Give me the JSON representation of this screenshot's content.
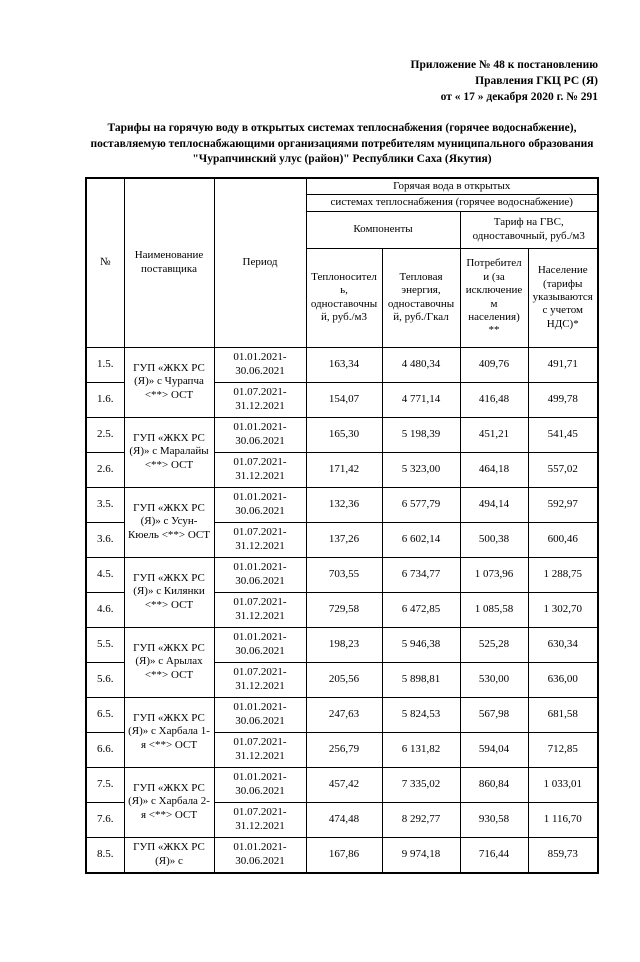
{
  "header": {
    "line1": "Приложение № 48 к постановлению",
    "line2": "Правления ГКЦ РС (Я)",
    "line3": "от « 17 » декабря  2020 г. № 291"
  },
  "title": "Тарифы на горячую воду в открытых системах теплоснабжения (горячее водоснабжение), поставляемую теплоснабжающими организациями  потребителям муниципального образования \"Чурапчинский улус (район)\"  Республики Саха (Якутия)",
  "table": {
    "headers": {
      "num": "№",
      "supplier": "Наименование поставщика",
      "period": "Период",
      "group_top": "Горячая вода в открытых",
      "group_sub": "системах теплоснабжения (горячее водоснабжение)",
      "components": "Компоненты",
      "gvs": "Тариф на ГВС, одноставочный, руб./м3",
      "col_heat_carrier": "Теплоноситель, одноставочный, руб./м3",
      "col_heat_energy": "Тепловая энергия, одноставочный, руб./Гкал",
      "col_consumers": "Потребители (за исключением населения) **",
      "col_population": "Население (тарифы указываются с учетом НДС)*"
    },
    "groups": [
      {
        "supplier": "ГУП «ЖКХ РС (Я)» с Чурапча <**> ОСТ",
        "rows": [
          {
            "num": "1.5.",
            "period": "01.01.2021-30.06.2021",
            "heat_carrier": "163,34",
            "heat_energy": "4 480,34",
            "consumers": "409,76",
            "population": "491,71"
          },
          {
            "num": "1.6.",
            "period": "01.07.2021-31.12.2021",
            "heat_carrier": "154,07",
            "heat_energy": "4 771,14",
            "consumers": "416,48",
            "population": "499,78"
          }
        ]
      },
      {
        "supplier": "ГУП «ЖКХ РС (Я)» с Маралайы <**> ОСТ",
        "rows": [
          {
            "num": "2.5.",
            "period": "01.01.2021-30.06.2021",
            "heat_carrier": "165,30",
            "heat_energy": "5 198,39",
            "consumers": "451,21",
            "population": "541,45"
          },
          {
            "num": "2.6.",
            "period": "01.07.2021-31.12.2021",
            "heat_carrier": "171,42",
            "heat_energy": "5 323,00",
            "consumers": "464,18",
            "population": "557,02"
          }
        ]
      },
      {
        "supplier": "ГУП «ЖКХ РС (Я)» с Усун-Кюель <**> ОСТ",
        "rows": [
          {
            "num": "3.5.",
            "period": "01.01.2021-30.06.2021",
            "heat_carrier": "132,36",
            "heat_energy": "6 577,79",
            "consumers": "494,14",
            "population": "592,97"
          },
          {
            "num": "3.6.",
            "period": "01.07.2021-31.12.2021",
            "heat_carrier": "137,26",
            "heat_energy": "6 602,14",
            "consumers": "500,38",
            "population": "600,46"
          }
        ]
      },
      {
        "supplier": "ГУП «ЖКХ РС (Я)» с Килянки <**> ОСТ",
        "rows": [
          {
            "num": "4.5.",
            "period": "01.01.2021-30.06.2021",
            "heat_carrier": "703,55",
            "heat_energy": "6 734,77",
            "consumers": "1 073,96",
            "population": "1 288,75"
          },
          {
            "num": "4.6.",
            "period": "01.07.2021-31.12.2021",
            "heat_carrier": "729,58",
            "heat_energy": "6 472,85",
            "consumers": "1 085,58",
            "population": "1 302,70"
          }
        ]
      },
      {
        "supplier": "ГУП «ЖКХ РС (Я)» с Арылах <**> ОСТ",
        "rows": [
          {
            "num": "5.5.",
            "period": "01.01.2021-30.06.2021",
            "heat_carrier": "198,23",
            "heat_energy": "5 946,38",
            "consumers": "525,28",
            "population": "630,34"
          },
          {
            "num": "5.6.",
            "period": "01.07.2021-31.12.2021",
            "heat_carrier": "205,56",
            "heat_energy": "5 898,81",
            "consumers": "530,00",
            "population": "636,00"
          }
        ]
      },
      {
        "supplier": "ГУП «ЖКХ РС (Я)» с Харбала 1-я <**> ОСТ",
        "rows": [
          {
            "num": "6.5.",
            "period": "01.01.2021-30.06.2021",
            "heat_carrier": "247,63",
            "heat_energy": "5 824,53",
            "consumers": "567,98",
            "population": "681,58"
          },
          {
            "num": "6.6.",
            "period": "01.07.2021-31.12.2021",
            "heat_carrier": "256,79",
            "heat_energy": "6 131,82",
            "consumers": "594,04",
            "population": "712,85"
          }
        ]
      },
      {
        "supplier": "ГУП «ЖКХ РС (Я)» с Харбала 2-я <**> ОСТ",
        "rows": [
          {
            "num": "7.5.",
            "period": "01.01.2021-30.06.2021",
            "heat_carrier": "457,42",
            "heat_energy": "7 335,02",
            "consumers": "860,84",
            "population": "1 033,01"
          },
          {
            "num": "7.6.",
            "period": "01.07.2021-31.12.2021",
            "heat_carrier": "474,48",
            "heat_energy": "8 292,77",
            "consumers": "930,58",
            "population": "1 116,70"
          }
        ]
      },
      {
        "supplier": "ГУП «ЖКХ РС (Я)» с",
        "rows": [
          {
            "num": "8.5.",
            "period": "01.01.2021-30.06.2021",
            "heat_carrier": "167,86",
            "heat_energy": "9 974,18",
            "consumers": "716,44",
            "population": "859,73"
          }
        ]
      }
    ]
  }
}
